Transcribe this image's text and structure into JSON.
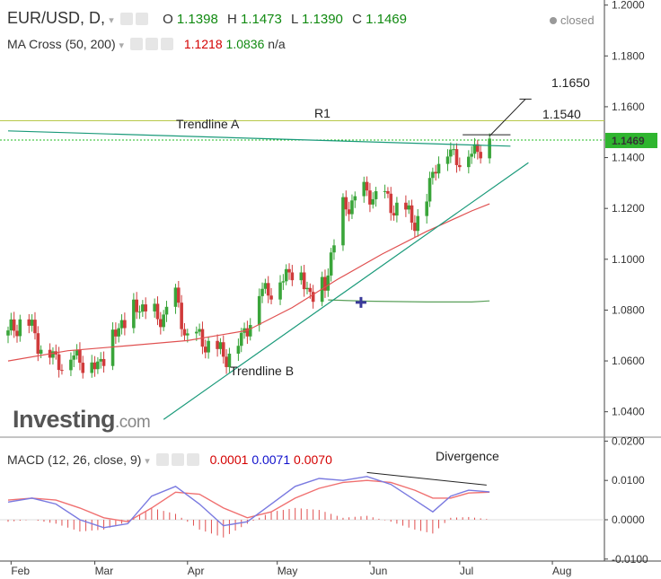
{
  "header": {
    "symbol": "EUR/USD, D,",
    "o_label": "O",
    "o": "1.1398",
    "h_label": "H",
    "h": "1.1473",
    "l_label": "L",
    "l": "1.1390",
    "c_label": "C",
    "c": "1.1469",
    "status": "closed",
    "ma_label": "MA Cross (50, 200)",
    "ma50": "1.1218",
    "ma200": "1.0836",
    "ma_na": "n/a",
    "macd_label": "MACD (12, 26, close, 9)",
    "macd_hist": "0.0001",
    "macd_line": "0.0071",
    "macd_signal": "0.0070"
  },
  "colors": {
    "up": "#3aa53a",
    "down": "#d03b3b",
    "ma50": "#e05050",
    "ma200": "#5aa05a",
    "trend": "#1a9a7a",
    "macd": "#7a7ae0",
    "signal": "#f07070"
  },
  "logo": {
    "main": "Investing",
    "suffix": ".com"
  },
  "chart_data": [
    {
      "type": "candlestick",
      "title": "EUR/USD, D,",
      "ylim": [
        1.03,
        1.202
      ],
      "y_ticks": [
        "1.2000",
        "1.1800",
        "1.1600",
        "1.1400",
        "1.1200",
        "1.1000",
        "1.0800",
        "1.0600",
        "1.0400"
      ],
      "x_ticks": [
        "Feb",
        "Mar",
        "Apr",
        "May",
        "Jun",
        "Jul",
        "Aug"
      ],
      "x_tick_days": [
        1,
        29,
        60,
        90,
        121,
        151,
        182
      ],
      "last_price": "1.1469",
      "annotations": {
        "trendline_a": "Trendline A",
        "trendline_b": "Trendline B",
        "r1": "R1",
        "level_high": "1.1650",
        "level_mid": "1.1540"
      },
      "closes_anchor": [
        [
          0,
          1.07
        ],
        [
          5,
          1.078
        ],
        [
          10,
          1.068
        ],
        [
          16,
          1.06
        ],
        [
          22,
          1.062
        ],
        [
          30,
          1.058
        ],
        [
          36,
          1.072
        ],
        [
          44,
          1.082
        ],
        [
          50,
          1.076
        ],
        [
          56,
          1.084
        ],
        [
          60,
          1.069
        ],
        [
          66,
          1.068
        ],
        [
          72,
          1.062
        ],
        [
          78,
          1.068
        ],
        [
          84,
          1.087
        ],
        [
          90,
          1.09
        ],
        [
          96,
          1.098
        ],
        [
          101,
          1.086
        ],
        [
          106,
          1.09
        ],
        [
          111,
          1.118
        ],
        [
          116,
          1.124
        ],
        [
          121,
          1.126
        ],
        [
          126,
          1.123
        ],
        [
          131,
          1.12
        ],
        [
          135,
          1.116
        ],
        [
          139,
          1.118
        ],
        [
          143,
          1.139
        ],
        [
          147,
          1.142
        ],
        [
          152,
          1.14
        ],
        [
          156,
          1.143
        ],
        [
          161,
          1.1469
        ]
      ],
      "ma50": [
        [
          0,
          1.06
        ],
        [
          20,
          1.064
        ],
        [
          40,
          1.066
        ],
        [
          60,
          1.068
        ],
        [
          80,
          1.072
        ],
        [
          95,
          1.081
        ],
        [
          110,
          1.092
        ],
        [
          125,
          1.102
        ],
        [
          140,
          1.111
        ],
        [
          155,
          1.119
        ],
        [
          161,
          1.1218
        ]
      ],
      "ma200": [
        [
          107,
          1.084
        ],
        [
          120,
          1.0835
        ],
        [
          140,
          1.0832
        ],
        [
          155,
          1.0832
        ],
        [
          161,
          1.0836
        ]
      ],
      "trendline_a": [
        [
          0,
          1.1505
        ],
        [
          168,
          1.1445
        ]
      ],
      "trendline_b": [
        [
          52,
          1.037
        ],
        [
          174,
          1.138
        ]
      ],
      "r1_level": 1.1545,
      "green_dotted_level": 1.1469
    },
    {
      "type": "line",
      "title": "MACD (12, 26, close, 9)",
      "ylim": [
        -0.0105,
        0.021
      ],
      "y_ticks": [
        "0.0200",
        "0.0100",
        "0.0000",
        "-0.0100"
      ],
      "annotation": "Divergence",
      "macd": [
        [
          0,
          0.0045
        ],
        [
          8,
          0.0055
        ],
        [
          16,
          0.004
        ],
        [
          24,
          0.0
        ],
        [
          32,
          -0.002
        ],
        [
          40,
          -0.001
        ],
        [
          48,
          0.006
        ],
        [
          56,
          0.0085
        ],
        [
          64,
          0.004
        ],
        [
          72,
          -0.0015
        ],
        [
          80,
          -0.0005
        ],
        [
          88,
          0.004
        ],
        [
          96,
          0.0085
        ],
        [
          104,
          0.0105
        ],
        [
          112,
          0.01
        ],
        [
          120,
          0.011
        ],
        [
          128,
          0.009
        ],
        [
          136,
          0.005
        ],
        [
          142,
          0.002
        ],
        [
          148,
          0.006
        ],
        [
          154,
          0.0075
        ],
        [
          161,
          0.0071
        ]
      ],
      "signal": [
        [
          0,
          0.005
        ],
        [
          8,
          0.0055
        ],
        [
          16,
          0.005
        ],
        [
          24,
          0.003
        ],
        [
          32,
          0.0005
        ],
        [
          40,
          -0.0005
        ],
        [
          48,
          0.003
        ],
        [
          56,
          0.007
        ],
        [
          64,
          0.0065
        ],
        [
          72,
          0.003
        ],
        [
          80,
          0.0005
        ],
        [
          88,
          0.002
        ],
        [
          96,
          0.0055
        ],
        [
          104,
          0.008
        ],
        [
          112,
          0.0095
        ],
        [
          120,
          0.01
        ],
        [
          128,
          0.0095
        ],
        [
          136,
          0.0075
        ],
        [
          142,
          0.0055
        ],
        [
          148,
          0.0055
        ],
        [
          154,
          0.0068
        ],
        [
          161,
          0.007
        ]
      ],
      "divergence_line": [
        [
          120,
          0.012
        ],
        [
          160,
          0.0088
        ]
      ]
    }
  ]
}
